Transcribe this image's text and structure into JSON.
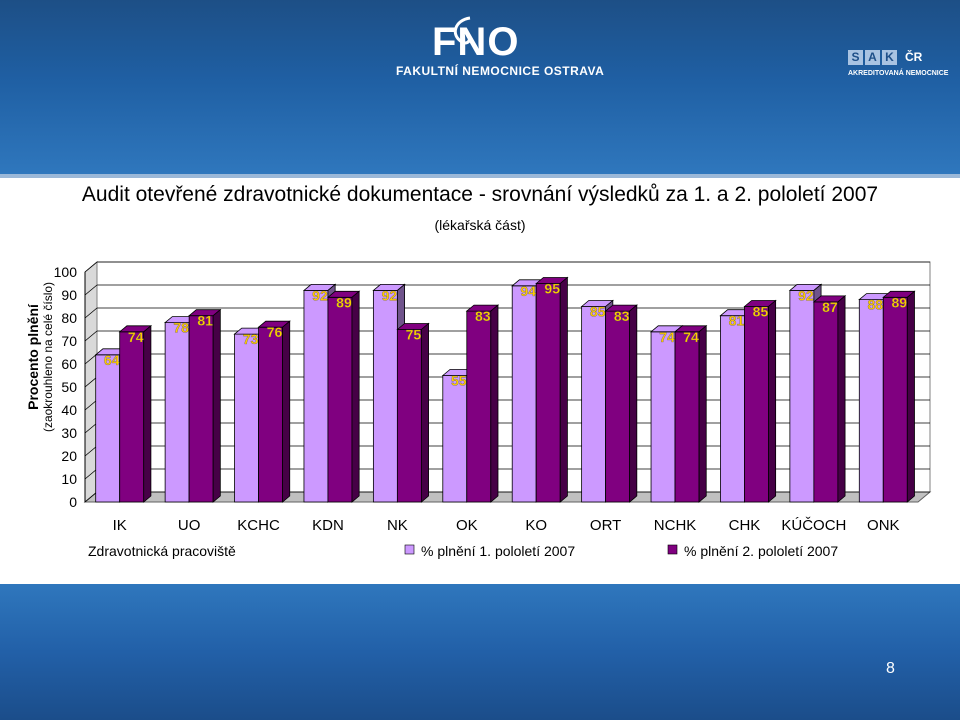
{
  "header": {
    "logo_text": "FAKULTNÍ NEMOCNICE OSTRAVA",
    "logo_mark": "FNO",
    "badge_letters": [
      "S",
      "A",
      "K"
    ],
    "badge_cr": "ČR",
    "badge_subtitle": "AKREDITOVANÁ NEMOCNICE"
  },
  "page_number": "8",
  "chart_data": {
    "type": "bar",
    "title": "Audit otevřené zdravotnické dokumentace - srovnání výsledků za 1. a 2. pololetí 2007",
    "subtitle": "(lékařská část)",
    "ylabel": "Procento plnění",
    "ylabel_sub": "(zaokrouhleno na celé číslo)",
    "xlabel": "Zdravotnická pracoviště",
    "ylim": [
      0,
      100
    ],
    "yticks": [
      0,
      10,
      20,
      30,
      40,
      50,
      60,
      70,
      80,
      90,
      100
    ],
    "categories": [
      "IK",
      "UO",
      "KCHC",
      "KDN",
      "NK",
      "OK",
      "KO",
      "ORT",
      "NCHK",
      "CHK",
      "KÚČOCH",
      "ONK"
    ],
    "series": [
      {
        "name": "% plnění 1. pololetí 2007",
        "values": [
          64,
          78,
          73,
          92,
          92,
          55,
          94,
          85,
          74,
          81,
          92,
          88
        ],
        "color": "#cc99ff"
      },
      {
        "name": "% plnění 2. pololetí 2007",
        "values": [
          74,
          81,
          76,
          89,
          75,
          83,
          95,
          83,
          74,
          85,
          87,
          89
        ],
        "color": "#800080"
      }
    ],
    "legend": "bottom",
    "gridlines": true,
    "data_label_color": "#ffcc00"
  }
}
